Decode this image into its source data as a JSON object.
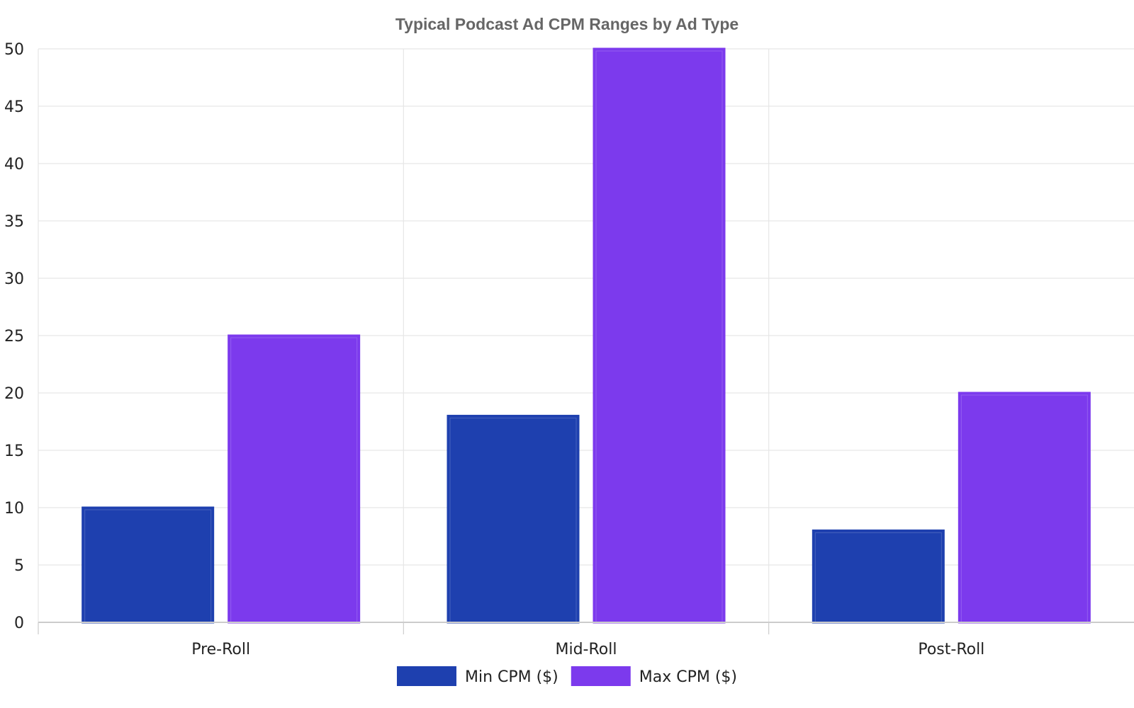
{
  "chart_data": {
    "type": "bar",
    "title": "Typical Podcast Ad CPM Ranges by Ad Type",
    "xlabel": "",
    "ylabel": "",
    "categories": [
      "Pre-Roll",
      "Mid-Roll",
      "Post-Roll"
    ],
    "series": [
      {
        "name": "Min CPM ($)",
        "values": [
          10,
          18,
          8
        ],
        "color": "#1e40af"
      },
      {
        "name": "Max CPM ($)",
        "values": [
          25,
          50,
          20
        ],
        "color": "#7c3aed"
      }
    ],
    "ylim": [
      0,
      50
    ],
    "yticks": [
      0,
      5,
      10,
      15,
      20,
      25,
      30,
      35,
      40,
      45,
      50
    ],
    "grid": true,
    "legend_position": "bottom-center"
  }
}
